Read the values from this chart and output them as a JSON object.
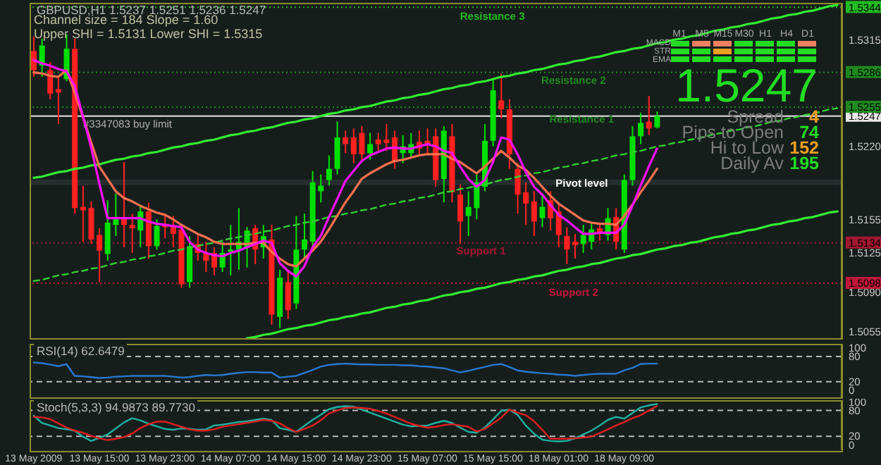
{
  "chart_data": [
    {
      "type": "candlestick",
      "title": "GBPUSD,H1 1.5237 1.5251 1.5236 1.5247",
      "categories": [
        null,
        null,
        null,
        null,
        null,
        null,
        null,
        null,
        null,
        null,
        null,
        null,
        null,
        null,
        null,
        null,
        null,
        null,
        null,
        null,
        null,
        null,
        null,
        null,
        null,
        null,
        null,
        null,
        null,
        null,
        null,
        null,
        null,
        null,
        null,
        null,
        null,
        null,
        null,
        null,
        null,
        null,
        null,
        null,
        null,
        null,
        null,
        null,
        null,
        null,
        null,
        null,
        null,
        null,
        null,
        null,
        null,
        null,
        null,
        null,
        null,
        null,
        null,
        null,
        null,
        null,
        null,
        null,
        null,
        null,
        null,
        null,
        null,
        null,
        null,
        null,
        null,
        null,
        null,
        null,
        null,
        null,
        null,
        null,
        null,
        null,
        null,
        null,
        null,
        null,
        null,
        null,
        null,
        null,
        null,
        null,
        null,
        null,
        null
      ],
      "ohlc": [
        [
          1.5305,
          1.5318,
          1.5282,
          1.5288
        ],
        [
          1.5292,
          1.5316,
          1.5282,
          1.531
        ],
        [
          1.5288,
          1.5295,
          1.5262,
          1.5267
        ],
        [
          1.5271,
          1.5281,
          1.524,
          1.5268
        ],
        [
          1.528,
          1.532,
          1.5278,
          1.5307
        ],
        [
          1.5307,
          1.5316,
          1.516,
          1.5165
        ],
        [
          1.5166,
          1.5185,
          1.5135,
          1.5163
        ],
        [
          1.5165,
          1.5171,
          1.5133,
          1.5137
        ],
        [
          1.5141,
          1.5147,
          1.5099,
          1.5127
        ],
        [
          1.5124,
          1.5172,
          1.5118,
          1.5152
        ],
        [
          1.515,
          1.5178,
          1.514,
          1.5155
        ],
        [
          1.5155,
          1.5206,
          1.513,
          1.515
        ],
        [
          1.515,
          1.516,
          1.5125,
          1.5147
        ],
        [
          1.5145,
          1.5168,
          1.513,
          1.5162
        ],
        [
          1.5162,
          1.517,
          1.512,
          1.5131
        ],
        [
          1.5131,
          1.5155,
          1.5128,
          1.5149
        ],
        [
          1.515,
          1.516,
          1.5138,
          1.5148
        ],
        [
          1.5148,
          1.5158,
          1.513,
          1.5142
        ],
        [
          1.5146,
          1.515,
          1.5094,
          1.5097
        ],
        [
          1.5099,
          1.514,
          1.5094,
          1.5131
        ],
        [
          1.5133,
          1.5142,
          1.5118,
          1.5125
        ],
        [
          1.5125,
          1.5135,
          1.5108,
          1.5118
        ],
        [
          1.5125,
          1.513,
          1.5105,
          1.5112
        ],
        [
          1.5112,
          1.5135,
          1.5108,
          1.5125
        ],
        [
          1.5126,
          1.515,
          1.5105,
          1.5128
        ],
        [
          1.5128,
          1.5165,
          1.511,
          1.5135
        ],
        [
          1.513,
          1.5148,
          1.5112,
          1.5145
        ],
        [
          1.5147,
          1.515,
          1.5115,
          1.5128
        ],
        [
          1.513,
          1.515,
          1.512,
          1.514
        ],
        [
          1.5137,
          1.515,
          1.5061,
          1.507
        ],
        [
          1.5068,
          1.511,
          1.5058,
          1.5103
        ],
        [
          1.5099,
          1.511,
          1.5066,
          1.5074
        ],
        [
          1.508,
          1.5158,
          1.5075,
          1.5128
        ],
        [
          1.5128,
          1.516,
          1.512,
          1.5137
        ],
        [
          1.5135,
          1.5198,
          1.513,
          1.5188
        ],
        [
          1.518,
          1.5195,
          1.517,
          1.5185
        ],
        [
          1.519,
          1.5212,
          1.5185,
          1.52
        ],
        [
          1.52,
          1.5242,
          1.5195,
          1.5228
        ],
        [
          1.5228,
          1.5234,
          1.5214,
          1.5222
        ],
        [
          1.5228,
          1.5236,
          1.5205,
          1.5213
        ],
        [
          1.5232,
          1.5238,
          1.5208,
          1.5213
        ],
        [
          1.5214,
          1.5232,
          1.5208,
          1.5222
        ],
        [
          1.5226,
          1.5232,
          1.5215,
          1.5222
        ],
        [
          1.5226,
          1.524,
          1.5216,
          1.5223
        ],
        [
          1.5228,
          1.5234,
          1.52,
          1.5206
        ],
        [
          1.5214,
          1.523,
          1.5205,
          1.522
        ],
        [
          1.5214,
          1.5232,
          1.521,
          1.5222
        ],
        [
          1.5224,
          1.5234,
          1.5212,
          1.5218
        ],
        [
          1.5225,
          1.5236,
          1.5212,
          1.5221
        ],
        [
          1.5229,
          1.5236,
          1.5184,
          1.519
        ],
        [
          1.5191,
          1.5238,
          1.517,
          1.5234
        ],
        [
          1.5229,
          1.524,
          1.517,
          1.5179
        ],
        [
          1.5177,
          1.5186,
          1.5133,
          1.5153
        ],
        [
          1.5158,
          1.518,
          1.514,
          1.5166
        ],
        [
          1.5165,
          1.5195,
          1.5155,
          1.5188
        ],
        [
          1.5184,
          1.524,
          1.518,
          1.5225
        ],
        [
          1.5225,
          1.528,
          1.522,
          1.527
        ],
        [
          1.5261,
          1.5285,
          1.5245,
          1.5253
        ],
        [
          1.5253,
          1.5262,
          1.52,
          1.5213
        ],
        [
          1.52,
          1.5205,
          1.516,
          1.5177
        ],
        [
          1.5179,
          1.5188,
          1.515,
          1.5169
        ],
        [
          1.5171,
          1.518,
          1.514,
          1.5153
        ],
        [
          1.5156,
          1.5178,
          1.5148,
          1.5166
        ],
        [
          1.5172,
          1.518,
          1.5145,
          1.5156
        ],
        [
          1.5162,
          1.517,
          1.513,
          1.5141
        ],
        [
          1.514,
          1.5148,
          1.5115,
          1.5128
        ],
        [
          1.5135,
          1.5142,
          1.512,
          1.5132
        ],
        [
          1.5133,
          1.515,
          1.5125,
          1.5141
        ],
        [
          1.5135,
          1.5152,
          1.5128,
          1.5146
        ],
        [
          1.5147,
          1.5152,
          1.5136,
          1.5143
        ],
        [
          1.5141,
          1.5165,
          1.5136,
          1.5156
        ],
        [
          1.5157,
          1.5165,
          1.5128,
          1.5135
        ],
        [
          1.5128,
          1.5195,
          1.5125,
          1.519
        ],
        [
          1.519,
          1.5238,
          1.5185,
          1.5229
        ],
        [
          1.5229,
          1.525,
          1.5222,
          1.5241
        ],
        [
          1.5242,
          1.5265,
          1.523,
          1.5236
        ],
        [
          1.5237,
          1.5251,
          1.5236,
          1.5247
        ],
        null,
        null,
        null,
        null,
        null,
        null,
        null,
        null,
        null,
        null,
        null,
        null,
        null,
        null,
        null,
        null,
        null,
        null,
        null,
        null,
        null,
        null
      ],
      "colors": [
        "#ff2020",
        "#00e000",
        "#ff2020",
        "#ff2020",
        "#00e000",
        "#ff2020",
        "#ff2020",
        "#ff2020",
        "#ff2020",
        "#00e000",
        "#00e000",
        "#ff2020",
        "#ff2020",
        "#00e000",
        "#ff2020",
        "#00e000",
        "#ff2020",
        "#ff2020",
        "#ff2020",
        "#00e000",
        "#ff2020",
        "#ff2020",
        "#ff2020",
        "#00e000",
        "#00e000",
        "#00e000",
        "#00e000",
        "#ff2020",
        "#00e000",
        "#ff2020",
        "#00e000",
        "#ff2020",
        "#00e000",
        "#00e000",
        "#00e000",
        "#00e000",
        "#00e000",
        "#00e000",
        "#ff2020",
        "#ff2020",
        "#ff2020",
        "#00e000",
        "#ff2020",
        "#ff2020",
        "#ff2020",
        "#00e000",
        "#00e000",
        "#ff2020",
        "#ff2020",
        "#ff2020",
        "#00e000",
        "#ff2020",
        "#ff2020",
        "#00e000",
        "#00e000",
        "#00e000",
        "#00e000",
        "#ff2020",
        "#ff2020",
        "#ff2020",
        "#ff2020",
        "#ff2020",
        "#00e000",
        "#ff2020",
        "#ff2020",
        "#ff2020",
        "#ff2020",
        "#00e000",
        "#00e000",
        "#ff2020",
        "#00e000",
        "#ff2020",
        "#00e000",
        "#00e000",
        "#00e000",
        "#ff2020",
        "#00e000",
        null,
        null,
        null,
        null,
        null,
        null,
        null,
        null,
        null,
        null,
        null,
        null,
        null,
        null,
        null,
        null,
        null,
        null,
        null,
        null,
        null,
        null
      ],
      "series": [
        {
          "type": "line",
          "color": "#33ee33",
          "values": [
            1.5192,
            1.5193,
            1.5195,
            1.5197,
            1.5198,
            1.52,
            1.5201,
            1.5203,
            1.5204,
            1.5206,
            1.5208,
            1.5209,
            1.5211,
            1.5212,
            1.5214,
            1.5215,
            1.5217,
            1.5219,
            1.522,
            1.5222,
            1.5223,
            1.5225,
            1.5226,
            1.5228,
            1.523,
            1.5231,
            1.5233,
            1.5234,
            1.5236,
            1.5237,
            1.5239,
            1.5241,
            1.5242,
            1.5244,
            1.5245,
            1.5247,
            1.5249,
            1.525,
            1.5252,
            1.5253,
            1.5255,
            1.5256,
            1.5258,
            1.526,
            1.5261,
            1.5263,
            1.5264,
            1.5266,
            1.5267,
            1.5269,
            1.5271,
            1.5272,
            1.5274,
            1.5275,
            1.5277,
            1.5278,
            1.528,
            1.5282,
            1.5283,
            1.5285,
            1.5286,
            1.5288,
            1.5289,
            1.5291,
            1.5293,
            1.5294,
            1.5296,
            1.5297,
            1.5299,
            1.53,
            1.5302,
            1.5304,
            1.5305,
            1.5307,
            1.5308,
            1.531,
            1.5312,
            1.5313,
            1.5315,
            1.5316,
            1.5318,
            1.5319,
            1.5321,
            1.5323,
            1.5324,
            1.5326,
            1.5327,
            1.5329,
            1.533,
            1.5332,
            1.5334,
            1.5335,
            1.5337,
            1.5338,
            1.534,
            1.5341,
            1.5343,
            1.5345,
            1.5346
          ]
        },
        {
          "type": "line",
          "color": "#33ee33",
          "values": [
            null,
            null,
            null,
            null,
            null,
            null,
            null,
            null,
            null,
            null,
            null,
            null,
            null,
            null,
            null,
            null,
            null,
            null,
            null,
            null,
            null,
            null,
            null,
            null,
            null,
            null,
            1.5049,
            1.505,
            1.5052,
            1.5053,
            1.5055,
            1.5057,
            1.5058,
            1.506,
            1.5061,
            1.5063,
            1.5065,
            1.5066,
            1.5068,
            1.5069,
            1.5071,
            1.5072,
            1.5074,
            1.5076,
            1.5077,
            1.5079,
            1.508,
            1.5082,
            1.5083,
            1.5085,
            1.5087,
            1.5088,
            1.509,
            1.5091,
            1.5093,
            1.5094,
            1.5096,
            1.5098,
            1.5099,
            1.5101,
            1.5102,
            1.5104,
            1.5105,
            1.5107,
            1.5109,
            1.511,
            1.5112,
            1.5113,
            1.5115,
            1.5116,
            1.5118,
            1.512,
            1.5121,
            1.5123,
            1.5124,
            1.5126,
            1.5128,
            1.5129,
            1.5131,
            1.5132,
            1.5134,
            1.5135,
            1.5137,
            1.5139,
            1.514,
            1.5142,
            1.5143,
            1.5145,
            1.5146,
            1.5148,
            1.515,
            1.5151,
            1.5153,
            1.5154,
            1.5156,
            1.5157,
            1.5159,
            1.5161,
            1.5162
          ]
        },
        {
          "type": "line",
          "color": "#33cc33",
          "line_style": "dashed",
          "values": [
            1.51,
            1.5101,
            1.5103,
            1.5105,
            1.5106,
            1.5108,
            1.5109,
            1.5111,
            1.5112,
            1.5114,
            1.5116,
            1.5117,
            1.5119,
            1.512,
            1.5122,
            1.5123,
            1.5125,
            1.5127,
            1.5128,
            1.513,
            1.5131,
            1.5133,
            1.5134,
            1.5136,
            1.5138,
            1.5139,
            1.5141,
            1.5142,
            1.5144,
            1.5145,
            1.5147,
            1.5149,
            1.515,
            1.5152,
            1.5153,
            1.5155,
            1.5157,
            1.5158,
            1.516,
            1.5161,
            1.5163,
            1.5164,
            1.5166,
            1.5168,
            1.5169,
            1.5171,
            1.5172,
            1.5174,
            1.5175,
            1.5177,
            1.5179,
            1.518,
            1.5182,
            1.5183,
            1.5185,
            1.5186,
            1.5188,
            1.519,
            1.5191,
            1.5193,
            1.5194,
            1.5196,
            1.5197,
            1.5199,
            1.5201,
            1.5202,
            1.5204,
            1.5205,
            1.5207,
            1.5208,
            1.521,
            1.5212,
            1.5213,
            1.5215,
            1.5216,
            1.5218,
            1.522,
            1.5221,
            1.5223,
            1.5224,
            1.5226,
            1.5227,
            1.5229,
            1.5231,
            1.5232,
            1.5234,
            1.5235,
            1.5237,
            1.5238,
            1.524,
            1.5242,
            1.5243,
            1.5245,
            1.5246,
            1.5248,
            1.5249,
            1.5251,
            1.5253,
            1.5254
          ]
        },
        {
          "type": "line",
          "color": "#ff7050",
          "values": [
            1.5286,
            1.5285,
            1.5283,
            1.5282,
            1.5288,
            1.5268,
            1.5246,
            1.5224,
            1.5202,
            1.5191,
            1.518,
            1.5174,
            1.5171,
            1.5167,
            1.5164,
            1.5161,
            1.5159,
            1.5155,
            1.515,
            1.5146,
            1.5142,
            1.5139,
            1.5135,
            1.5133,
            1.5133,
            1.5133,
            1.5133,
            1.5134,
            1.5134,
            1.5126,
            1.512,
            1.5115,
            1.5113,
            1.512,
            1.5127,
            1.5135,
            1.5146,
            1.5158,
            1.517,
            1.518,
            1.5191,
            1.5196,
            1.52,
            1.5204,
            1.5207,
            1.5208,
            1.521,
            1.5212,
            1.5213,
            1.5213,
            1.5213,
            1.5209,
            1.5206,
            1.5201,
            1.5196,
            1.5202,
            1.5209,
            1.5216,
            1.521,
            1.5203,
            1.5199,
            1.5192,
            1.5184,
            1.5176,
            1.5169,
            1.5164,
            1.5159,
            1.5154,
            1.5152,
            1.5151,
            1.5151,
            1.515,
            1.5158,
            1.5168,
            1.5179,
            1.5189,
            1.52,
            null,
            null,
            null,
            null,
            null,
            null,
            null,
            null,
            null,
            null,
            null,
            null,
            null,
            null,
            null,
            null,
            null,
            null,
            null,
            null,
            null,
            null
          ]
        },
        {
          "type": "line",
          "color": "#ff10ff",
          "values": [
            1.5297,
            1.5294,
            1.5292,
            1.5289,
            1.5287,
            1.5274,
            1.5247,
            1.5219,
            1.5187,
            1.5156,
            1.5156,
            1.5156,
            1.5156,
            1.5156,
            1.5153,
            1.5151,
            1.515,
            1.5149,
            1.5148,
            1.5135,
            1.5128,
            1.5125,
            1.5123,
            1.5122,
            1.5125,
            1.5127,
            1.513,
            1.5133,
            1.5136,
            1.5134,
            1.5116,
            1.5109,
            1.5104,
            1.5113,
            1.513,
            1.514,
            1.5157,
            1.5173,
            1.5189,
            1.5198,
            1.5207,
            1.5212,
            1.5215,
            1.5218,
            1.5219,
            1.5218,
            1.5218,
            1.522,
            1.5222,
            1.522,
            1.5216,
            1.5214,
            1.5202,
            1.5191,
            1.5184,
            1.519,
            1.5206,
            1.5228,
            1.5226,
            1.5213,
            1.5197,
            1.5184,
            1.5177,
            1.5168,
            1.5159,
            1.5154,
            1.5148,
            1.5142,
            1.5142,
            1.5143,
            1.5143,
            1.5143,
            1.515,
            1.5167,
            1.5185,
            1.5202,
            1.5218,
            null,
            null,
            null,
            null,
            null,
            null,
            null,
            null,
            null,
            null,
            null,
            null,
            null,
            null,
            null,
            null,
            null,
            null,
            null,
            null,
            null,
            null
          ]
        }
      ],
      "ylim": [
        1.5049,
        1.5348
      ],
      "yticks": [
        1.5055,
        {
          "value": 1.509,
          "label": "1.5090"
        },
        1.5098,
        1.5125,
        1.5134,
        1.5155,
        {
          "value": 1.522,
          "label": "1.5220"
        },
        1.5247,
        1.5255,
        1.5286,
        1.5315,
        1.5344
      ],
      "tick_labels": "y",
      "ref_lines": [
        {
          "axis": "y",
          "value": 1.5247,
          "label": "#3347083 buy limit",
          "color": "#e8e8e8",
          "line_style": "solid"
        },
        {
          "axis": "y",
          "value": 1.5344,
          "label": "Resistance 3",
          "color": "#22bb22",
          "line_style": "dotted"
        },
        {
          "axis": "y",
          "value": 1.5286,
          "label": "Resistance 2",
          "color": "#1e8a1e",
          "line_style": "dotted"
        },
        {
          "axis": "y",
          "value": 1.5255,
          "label": "Resistance 1",
          "color": "#1e8a1e",
          "line_style": "dotted"
        },
        {
          "axis": "y",
          "value": 1.5188,
          "label": "Pivot level",
          "color": "#2c3434",
          "line_style": "solid"
        },
        {
          "axis": "y",
          "value": 1.5134,
          "label": "Support 1",
          "color": "#a01830",
          "line_style": "dotted"
        },
        {
          "axis": "y",
          "value": 1.5098,
          "label": "Support 2",
          "color": "#c01838",
          "line_style": "dotted"
        }
      ],
      "annotations": [
        "Channel size = 184 Slope = 1.60",
        "Upper SHI = 1.5131 Lower SHI = 1.5315",
        "M1",
        "M5",
        "M15",
        "M30",
        "H1",
        "H4",
        "D1",
        "MACD",
        "STR",
        "EMA",
        "1.5247",
        "Spread",
        "4",
        "Pips to Open",
        "74",
        "Hi to Low",
        "152",
        "Daily Av",
        "195"
      ]
    },
    {
      "type": "line",
      "title": "RSI(14) 62.6479",
      "categories": [
        null,
        null,
        null,
        null,
        null,
        null,
        null,
        null,
        null,
        null,
        null,
        null,
        null,
        null,
        null,
        null,
        null,
        null,
        null,
        null,
        null,
        null,
        null,
        null,
        null,
        null,
        null,
        null,
        null,
        null,
        null,
        null,
        null,
        null,
        null,
        null,
        null,
        null,
        null,
        null,
        null,
        null,
        null,
        null,
        null,
        null,
        null,
        null,
        null,
        null,
        null,
        null,
        null,
        null,
        null,
        null,
        null,
        null,
        null,
        null,
        null,
        null,
        null,
        null,
        null,
        null,
        null,
        null,
        null,
        null,
        null,
        null,
        null,
        null,
        null,
        null,
        null,
        null,
        null,
        null,
        null,
        null,
        null,
        null,
        null,
        null,
        null,
        null,
        null,
        null,
        null,
        null,
        null,
        null,
        null,
        null,
        null,
        null,
        null
      ],
      "series": [
        {
          "color": "#2a78d0",
          "values": [
            66,
            64,
            61,
            57,
            62,
            34,
            33,
            31,
            29,
            30,
            32,
            33,
            34,
            34,
            34,
            34,
            34,
            32,
            30,
            31,
            34,
            36,
            35,
            36,
            39,
            41,
            43,
            43,
            42,
            42,
            30,
            32,
            34,
            41,
            48,
            56,
            60,
            62,
            63,
            62,
            61,
            61,
            60,
            60,
            60,
            59,
            59,
            57,
            56,
            54,
            52,
            47,
            42,
            46,
            51,
            55,
            60,
            62,
            55,
            47,
            44,
            42,
            40,
            39,
            37,
            36,
            34,
            36,
            38,
            39,
            39,
            39,
            47,
            53,
            62,
            63,
            63,
            null,
            null,
            null,
            null,
            null,
            null,
            null,
            null,
            null,
            null,
            null,
            null,
            null,
            null,
            null,
            null,
            null,
            null,
            null,
            null,
            null,
            null
          ]
        }
      ],
      "ylim": [
        -17,
        110
      ],
      "yticks": [
        0,
        20,
        80,
        100
      ],
      "tick_labels": "y",
      "ref_lines": [
        {
          "axis": "y",
          "value": 80,
          "color": "#b8b8b8",
          "line_style": "dashed"
        },
        {
          "axis": "y",
          "value": 20,
          "color": "#b8b8b8",
          "line_style": "dashed"
        }
      ]
    },
    {
      "type": "line",
      "title": "Stoch(5,3,3) 94.9873 89.7730",
      "categories": [
        "13 May 2009",
        null,
        null,
        null,
        null,
        null,
        null,
        null,
        "13 May 15:00",
        null,
        null,
        null,
        null,
        null,
        null,
        null,
        "13 May 23:00",
        null,
        null,
        null,
        null,
        null,
        null,
        null,
        "14 May 07:00",
        null,
        null,
        null,
        null,
        null,
        null,
        null,
        "14 May 15:00",
        null,
        null,
        null,
        null,
        null,
        null,
        null,
        "14 May 23:00",
        null,
        null,
        null,
        null,
        null,
        null,
        null,
        "15 May 07:00",
        null,
        null,
        null,
        null,
        null,
        null,
        null,
        "15 May 15:00",
        null,
        null,
        null,
        null,
        null,
        null,
        null,
        "18 May 01:00",
        null,
        null,
        null,
        null,
        null,
        null,
        null,
        "18 May 09:00",
        null,
        null,
        null,
        null,
        null,
        null,
        null,
        null,
        null,
        null,
        null,
        null,
        null,
        null,
        null,
        null,
        null,
        null,
        null,
        null,
        null,
        null,
        null,
        null,
        null,
        null
      ],
      "series": [
        {
          "color": "#20b0a0",
          "values": [
            68,
            51,
            45,
            39,
            36,
            33,
            19,
            9,
            16,
            24,
            38,
            52,
            62,
            57,
            49,
            43,
            37,
            35,
            38,
            37,
            35,
            36,
            45,
            47,
            50,
            53,
            55,
            58,
            61,
            58,
            39,
            35,
            30,
            44,
            58,
            70,
            83,
            88,
            90,
            89,
            82,
            75,
            68,
            61,
            54,
            47,
            43,
            44,
            45,
            51,
            56,
            51,
            40,
            30,
            28,
            40,
            59,
            79,
            82,
            70,
            45,
            26,
            12,
            9,
            8,
            9,
            15,
            24,
            33,
            45,
            58,
            65,
            61,
            74,
            87,
            92,
            95,
            null,
            null,
            null,
            null,
            null,
            null,
            null,
            null,
            null,
            null,
            null,
            null,
            null,
            null,
            null,
            null,
            null,
            null,
            null,
            null,
            null,
            null
          ]
        },
        {
          "color": "#e02020",
          "values": [
            65,
            64,
            60,
            50,
            40,
            33,
            28,
            21,
            15,
            11,
            14,
            18,
            26,
            39,
            48,
            54,
            54,
            48,
            42,
            36,
            33,
            33,
            36,
            42,
            45,
            48,
            51,
            54,
            58,
            56,
            50,
            39,
            30,
            37,
            45,
            57,
            73,
            80,
            86,
            87,
            86,
            84,
            79,
            73,
            65,
            57,
            49,
            44,
            40,
            42,
            46,
            48,
            45,
            42,
            31,
            37,
            50,
            63,
            82,
            75,
            69,
            55,
            35,
            14,
            14,
            14,
            15,
            17,
            19,
            27,
            36,
            45,
            53,
            62,
            69,
            80,
            90,
            null,
            null,
            null,
            null,
            null,
            null,
            null,
            null,
            null,
            null,
            null,
            null,
            null,
            null,
            null,
            null,
            null,
            null,
            null,
            null,
            null,
            null
          ]
        }
      ],
      "ylim": [
        -11,
        104
      ],
      "yticks": [
        0,
        20,
        80,
        100
      ],
      "ref_lines": [
        {
          "axis": "y",
          "value": 80,
          "color": "#b8b8b8",
          "line_style": "dashed"
        },
        {
          "axis": "y",
          "value": 20,
          "color": "#b8b8b8",
          "line_style": "dashed"
        }
      ]
    }
  ]
}
